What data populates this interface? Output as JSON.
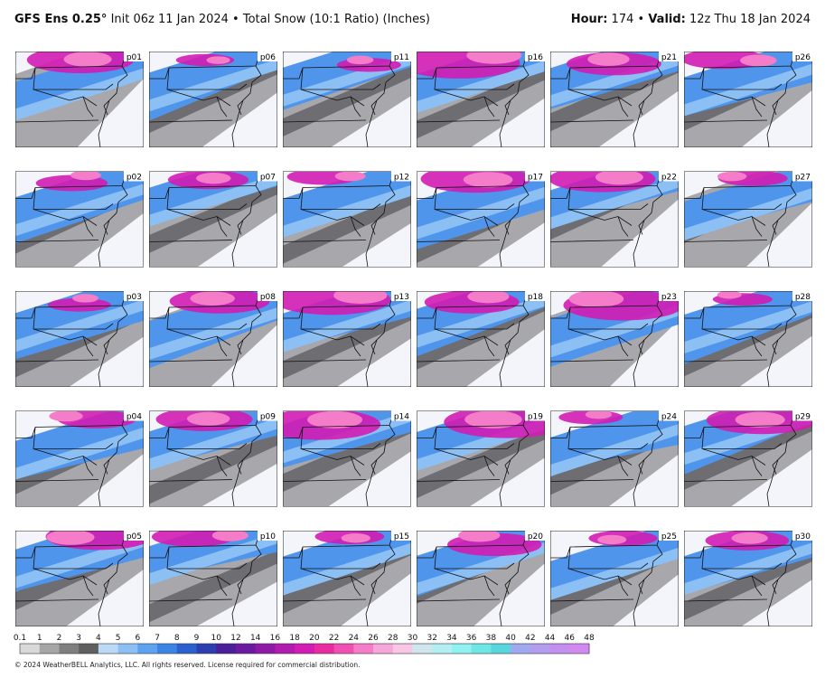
{
  "header": {
    "model": "GFS Ens 0.25°",
    "init": "Init 06z 11 Jan 2024",
    "sep1": "•",
    "product": "Total Snow (10:1 Ratio) (Inches)",
    "hour_label": "Hour:",
    "hour": "174",
    "sep2": "•",
    "valid_label": "Valid:",
    "valid": "12z Thu 18 Jan 2024"
  },
  "panels": [
    "p01",
    "p02",
    "p03",
    "p04",
    "p05",
    "p06",
    "p07",
    "p08",
    "p09",
    "p10",
    "p11",
    "p12",
    "p13",
    "p14",
    "p15",
    "p16",
    "p17",
    "p18",
    "p19",
    "p20",
    "p21",
    "p22",
    "p23",
    "p24",
    "p25",
    "p26",
    "p27",
    "p28",
    "p29",
    "p30"
  ],
  "legend": {
    "ticks": [
      0.1,
      1,
      2,
      3,
      4,
      5,
      6,
      7,
      8,
      9,
      10,
      12,
      14,
      16,
      18,
      20,
      22,
      24,
      26,
      28,
      30,
      32,
      34,
      36,
      38,
      40,
      42,
      44,
      46,
      48
    ],
    "colors": [
      "#d9d9d9",
      "#a6a6a6",
      "#7f7f7f",
      "#5f5f5f",
      "#bcd8f7",
      "#8cc0f5",
      "#5ea3f0",
      "#3a84e3",
      "#2c5fcf",
      "#2c3fb0",
      "#4b1f9a",
      "#6d1aa3",
      "#8f1aa8",
      "#b01bb0",
      "#d21cb3",
      "#ea2aa0",
      "#f04fb4",
      "#f47cc8",
      "#f7a6da",
      "#f9c6e6",
      "#cfe6ee",
      "#b2eef2",
      "#8ff2f0",
      "#6fe6e6",
      "#58d6de",
      "#9fa9f0",
      "#b49cf0",
      "#c58ff0",
      "#d28af0"
    ]
  },
  "footer": "© 2024 WeatherBELL Analytics, LLC. All rights reserved. License required for commercial distribution."
}
